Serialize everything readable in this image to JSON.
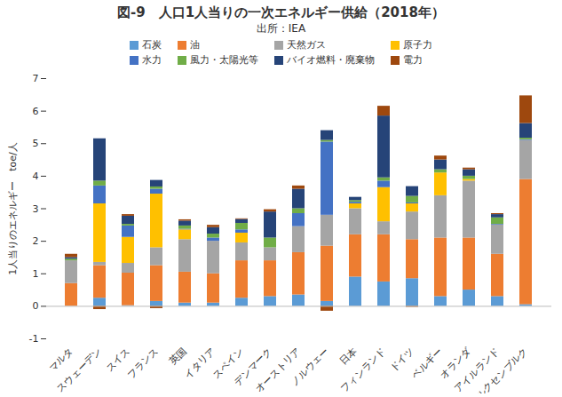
{
  "chart_data": {
    "type": "bar",
    "stacked": true,
    "title": "図-9　人口1人当りの一次エネルギー供給（2018年）",
    "subtitle": "出所：IEA",
    "y_label": "1人当りのエネルギー　toe/人",
    "legend": "top",
    "grid": false,
    "ylim": [
      -1,
      7
    ],
    "yticks": [
      -1,
      0,
      1,
      2,
      3,
      4,
      5,
      6,
      7
    ],
    "categories": [
      "マルタ",
      "スウェーデン",
      "スイス",
      "フランス",
      "英国",
      "イタリア",
      "スペイン",
      "デンマーク",
      "オーストリア",
      "ノルウェー",
      "日本",
      "フィンランド",
      "ドイツ",
      "ベルギー",
      "オランダ",
      "アイルランド",
      "ルクセンブルク"
    ],
    "series": [
      {
        "name": "石炭",
        "color": "#5B9BD5",
        "values": [
          0,
          0.25,
          0.02,
          0.15,
          0.1,
          0.1,
          0.25,
          0.3,
          0.35,
          0.15,
          0.9,
          0.75,
          0.85,
          0.3,
          0.5,
          0.3,
          0.05
        ]
      },
      {
        "name": "油",
        "color": "#ED7D31",
        "values": [
          0.7,
          1.0,
          1.0,
          1.1,
          0.95,
          0.9,
          1.15,
          1.1,
          1.3,
          1.7,
          1.3,
          1.45,
          1.2,
          1.8,
          1.6,
          1.3,
          3.85
        ]
      },
      {
        "name": "天然ガス",
        "color": "#A5A5A5",
        "values": [
          0.7,
          0.1,
          0.3,
          0.55,
          1.0,
          1.0,
          0.55,
          0.4,
          0.8,
          0.95,
          0.8,
          0.4,
          0.85,
          1.3,
          1.75,
          0.9,
          1.2
        ]
      },
      {
        "name": "原子力",
        "color": "#FFC000",
        "values": [
          0,
          1.8,
          0.8,
          1.65,
          0.3,
          0,
          0.3,
          0,
          0,
          0,
          0.15,
          1.05,
          0.25,
          0.7,
          0.05,
          0,
          0
        ]
      },
      {
        "name": "水力",
        "color": "#4472C4",
        "values": [
          0,
          0.55,
          0.35,
          0.15,
          0.02,
          0.1,
          0.1,
          0,
          0.4,
          2.25,
          0.05,
          0.2,
          0.03,
          0,
          0,
          0.02,
          0.02
        ]
      },
      {
        "name": "風力・太陽光等",
        "color": "#70AD47",
        "values": [
          0.05,
          0.15,
          0.05,
          0.07,
          0.1,
          0.12,
          0.2,
          0.3,
          0.15,
          0.05,
          0.05,
          0.1,
          0.2,
          0.1,
          0.1,
          0.2,
          0.05
        ]
      },
      {
        "name": "バイオ燃料・廃棄物",
        "color": "#264478",
        "values": [
          0.05,
          1.3,
          0.25,
          0.2,
          0.15,
          0.2,
          0.12,
          0.8,
          0.6,
          0.3,
          0.1,
          1.9,
          0.3,
          0.3,
          0.2,
          0.1,
          0.45
        ]
      },
      {
        "name": "電力",
        "color": "#9E480E",
        "values": [
          0.1,
          -0.1,
          0.05,
          -0.07,
          0.04,
          0.07,
          0.02,
          0.07,
          0.1,
          -0.15,
          0,
          0.3,
          -0.03,
          0.12,
          0.05,
          0.03,
          0.85
        ]
      }
    ]
  }
}
